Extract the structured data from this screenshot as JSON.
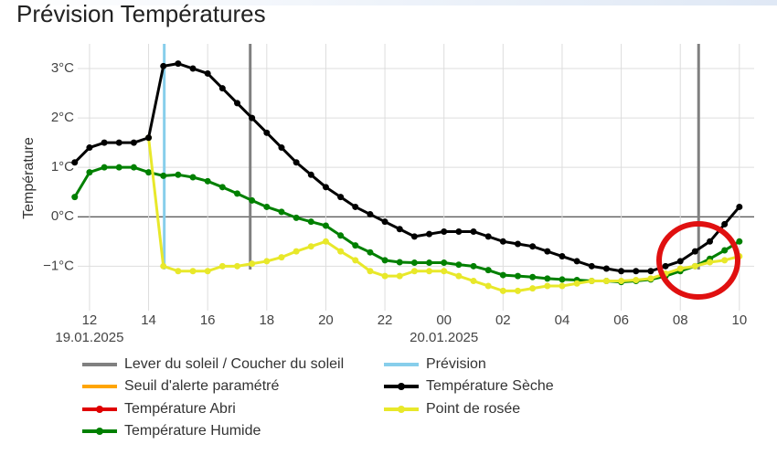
{
  "chart_data": {
    "type": "line",
    "title": "Prévision Températures",
    "y_label": "Température",
    "x": [
      11.5,
      12,
      12.5,
      13,
      13.5,
      14,
      14.5,
      15,
      15.5,
      16,
      16.5,
      17,
      17.5,
      18,
      18.5,
      19,
      19.5,
      20,
      20.5,
      21,
      21.5,
      22,
      22.5,
      23,
      23.5,
      24,
      24.5,
      25,
      25.5,
      26,
      26.5,
      27,
      27.5,
      28,
      28.5,
      29,
      29.5,
      30,
      30.5,
      31,
      31.5,
      32,
      32.5,
      33,
      33.5,
      34
    ],
    "series": [
      {
        "name": "Température Humide",
        "color": "#008000",
        "markers": true,
        "values": [
          0.4,
          0.9,
          1.0,
          1.0,
          1.0,
          0.9,
          0.83,
          0.85,
          0.8,
          0.72,
          0.6,
          0.47,
          0.33,
          0.2,
          0.1,
          -0.02,
          -0.1,
          -0.18,
          -0.38,
          -0.58,
          -0.72,
          -0.88,
          -0.92,
          -0.93,
          -0.93,
          -0.93,
          -0.97,
          -1.0,
          -1.08,
          -1.18,
          -1.2,
          -1.22,
          -1.25,
          -1.27,
          -1.28,
          -1.3,
          -1.3,
          -1.32,
          -1.3,
          -1.27,
          -1.2,
          -1.1,
          -1.0,
          -0.85,
          -0.68,
          -0.5
        ]
      },
      {
        "name": "Point de rosée",
        "color": "#e8e82a",
        "markers": true,
        "values": [
          null,
          null,
          null,
          null,
          null,
          1.6,
          -1.0,
          -1.1,
          -1.1,
          -1.1,
          -1.0,
          -1.0,
          -0.95,
          -0.9,
          -0.82,
          -0.7,
          -0.6,
          -0.5,
          -0.7,
          -0.88,
          -1.1,
          -1.2,
          -1.2,
          -1.1,
          -1.1,
          -1.1,
          -1.2,
          -1.3,
          -1.4,
          -1.5,
          -1.5,
          -1.45,
          -1.4,
          -1.4,
          -1.35,
          -1.3,
          -1.3,
          -1.3,
          -1.28,
          -1.25,
          -1.15,
          -1.05,
          -1.0,
          -0.92,
          -0.88,
          -0.8
        ]
      },
      {
        "name": "Température Sèche",
        "color": "#000000",
        "markers": true,
        "values": [
          1.1,
          1.4,
          1.5,
          1.5,
          1.5,
          1.6,
          3.05,
          3.1,
          3.0,
          2.9,
          2.6,
          2.3,
          2.0,
          1.7,
          1.4,
          1.1,
          0.85,
          0.6,
          0.4,
          0.2,
          0.05,
          -0.1,
          -0.25,
          -0.4,
          -0.35,
          -0.3,
          -0.3,
          -0.3,
          -0.4,
          -0.5,
          -0.55,
          -0.6,
          -0.7,
          -0.8,
          -0.9,
          -1.0,
          -1.05,
          -1.1,
          -1.1,
          -1.1,
          -1.0,
          -0.9,
          -0.7,
          -0.5,
          -0.15,
          0.2
        ]
      }
    ],
    "reference_lines": [
      {
        "name": "Lever du soleil / Coucher du soleil",
        "color": "#808080",
        "x": [
          17.44,
          32.62
        ]
      },
      {
        "name": "Prévision",
        "color": "#87ceeb",
        "x": [
          14.53
        ]
      }
    ],
    "empty_series": [
      {
        "name": "Seuil d'alerte paramétré",
        "color": "#ffa500",
        "markers": false
      },
      {
        "name": "Température Abri",
        "color": "#e00000",
        "markers": true
      }
    ],
    "xlim": [
      11.6,
      34.5
    ],
    "xticks": [
      12,
      14,
      16,
      18,
      20,
      22,
      {
        "value": 24,
        "label": "00"
      },
      {
        "value": 26,
        "label": "02"
      },
      {
        "value": 28,
        "label": "04"
      },
      {
        "value": 30,
        "label": "06"
      },
      {
        "value": 32,
        "label": "08"
      },
      {
        "value": 34,
        "label": "10"
      }
    ],
    "date_labels": [
      {
        "x": 12,
        "text": "19.01.2025"
      },
      {
        "x": 24,
        "text": "20.01.2025"
      }
    ],
    "ylim": [
      -1.9,
      3.5
    ],
    "yticks": [
      {
        "value": -1,
        "label": "−1°C"
      },
      {
        "value": 0,
        "label": "0°C"
      },
      {
        "value": 1,
        "label": "1°C"
      },
      {
        "value": 2,
        "label": "2°C"
      },
      {
        "value": 3,
        "label": "3°C"
      }
    ],
    "grid": true
  }
}
